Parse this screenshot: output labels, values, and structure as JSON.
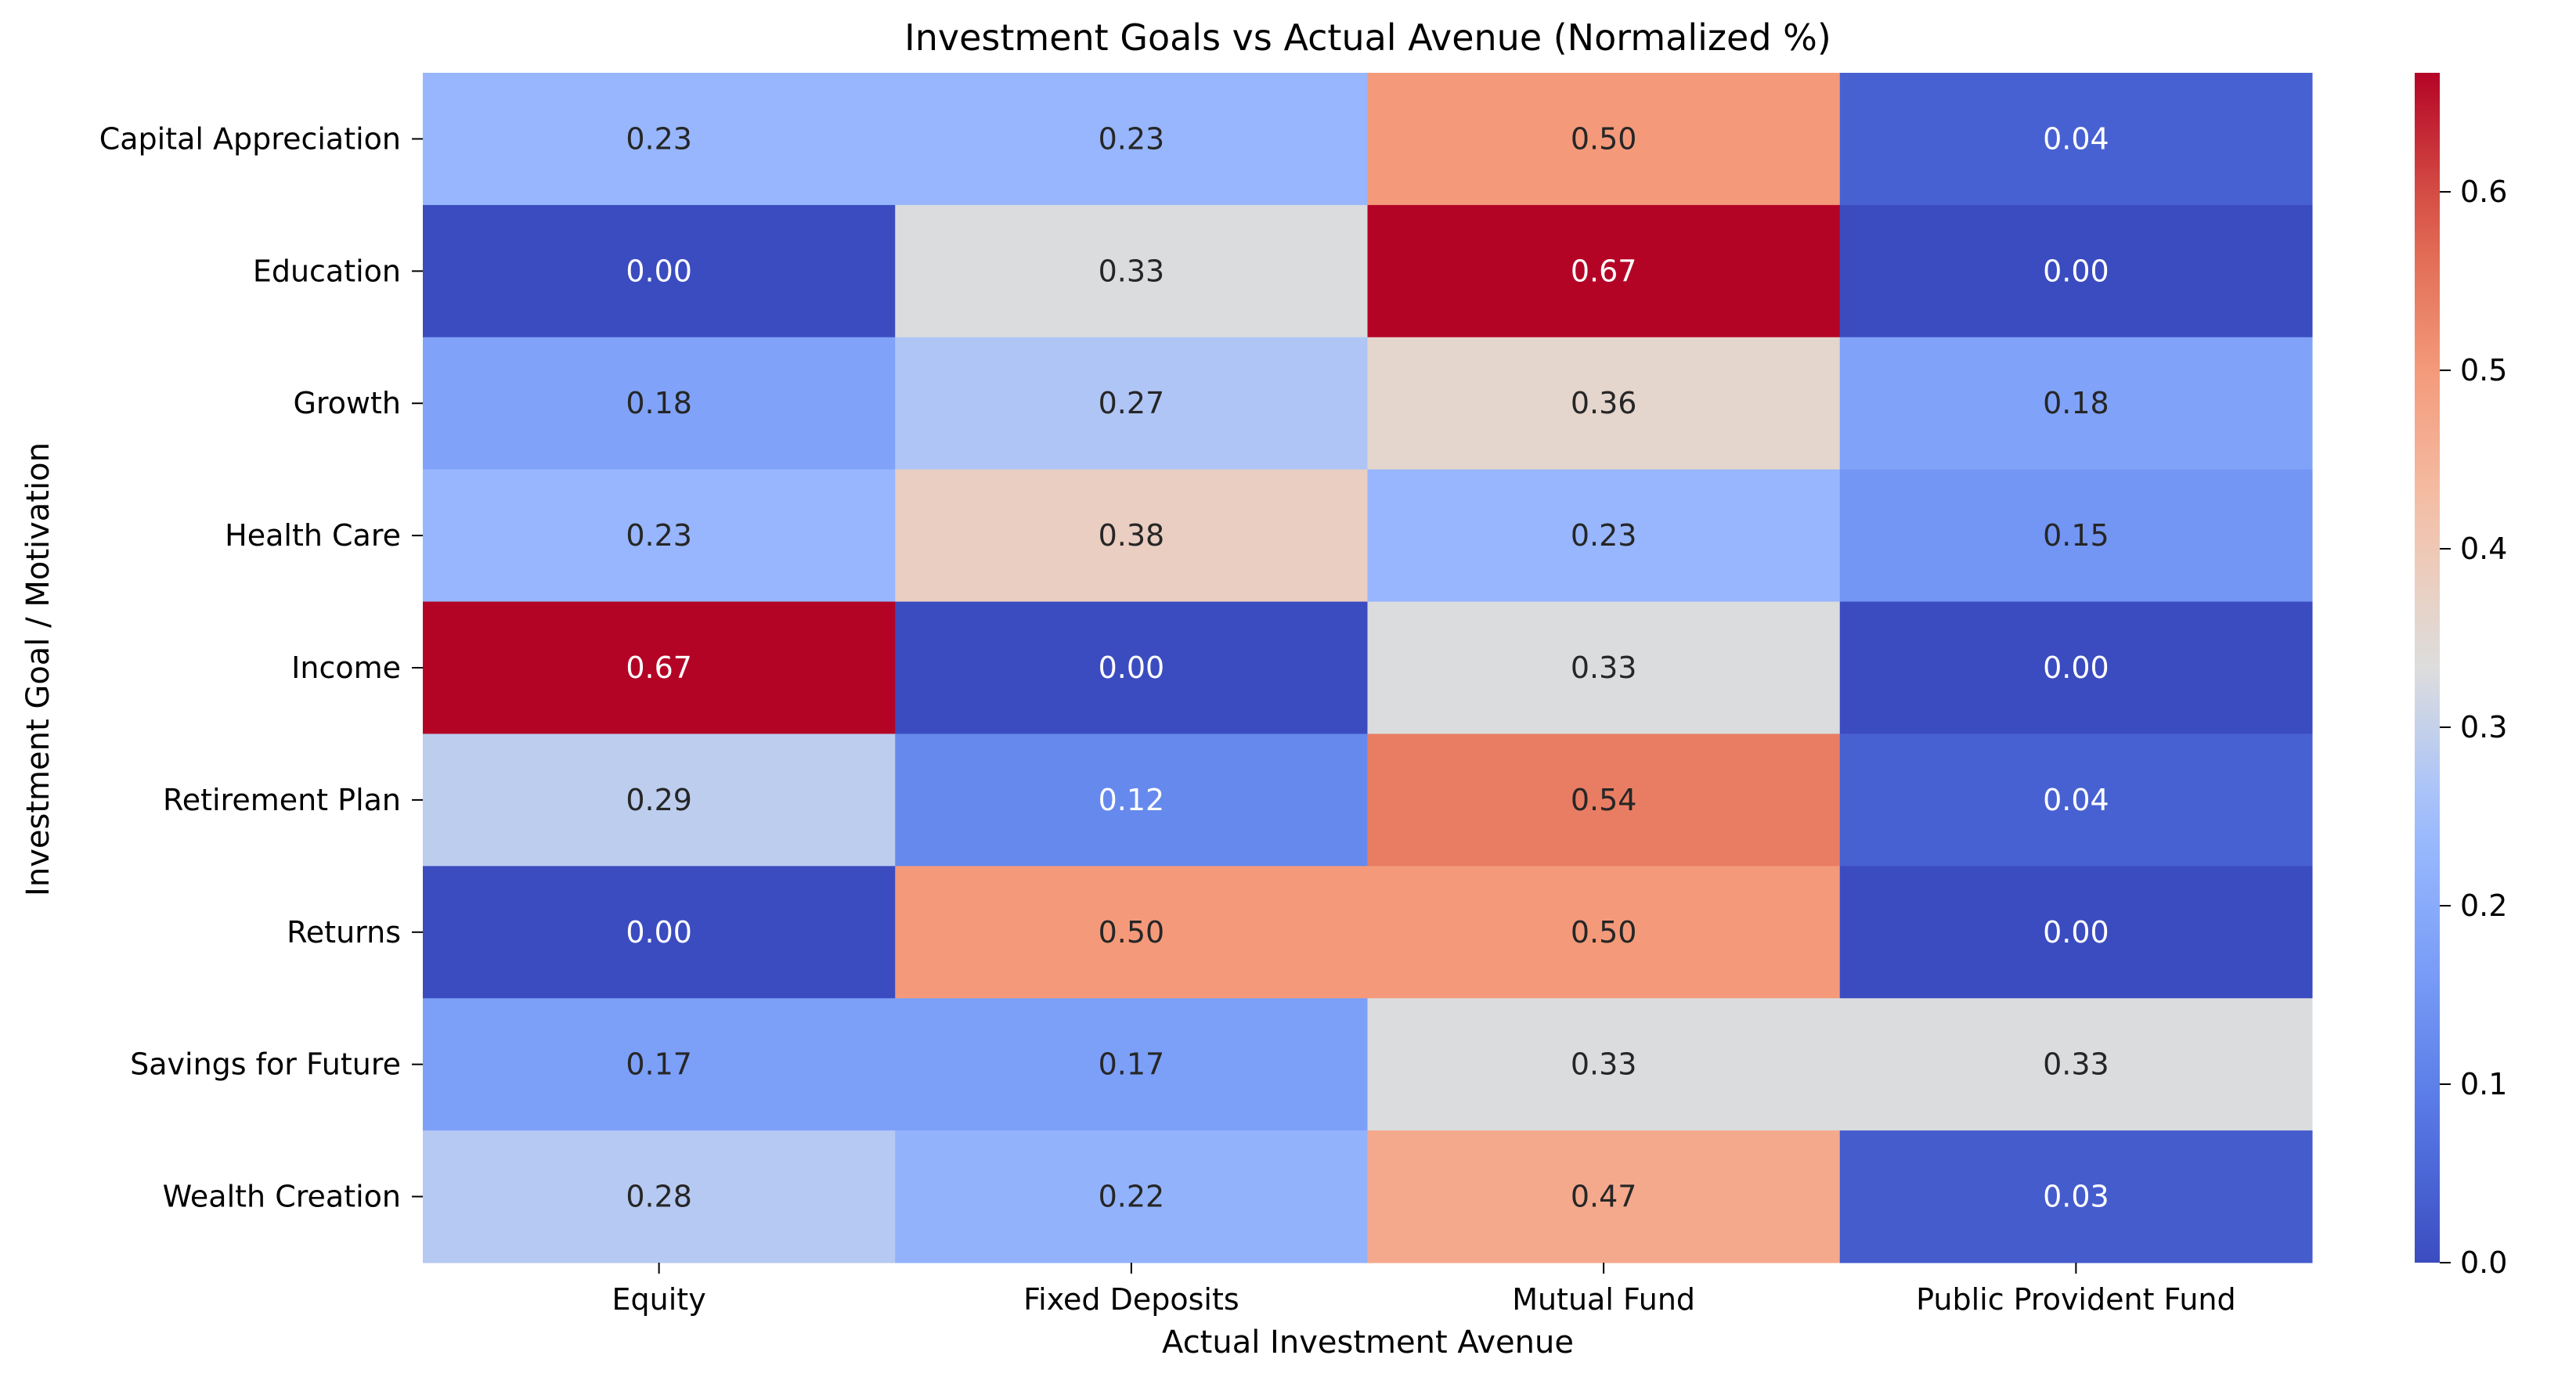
{
  "chart_data": {
    "type": "heatmap",
    "title": "Investment Goals vs Actual Avenue (Normalized %)",
    "xlabel": "Actual Investment Avenue",
    "ylabel": "Investment Goal / Motivation",
    "columns": [
      "Equity",
      "Fixed Deposits",
      "Mutual Fund",
      "Public Provident Fund"
    ],
    "rows": [
      "Capital Appreciation",
      "Education",
      "Growth",
      "Health Care",
      "Income",
      "Retirement Plan",
      "Returns",
      "Savings for Future",
      "Wealth Creation"
    ],
    "values": [
      [
        0.23,
        0.23,
        0.5,
        0.04
      ],
      [
        0.0,
        0.33,
        0.67,
        0.0
      ],
      [
        0.18,
        0.27,
        0.36,
        0.18
      ],
      [
        0.23,
        0.38,
        0.23,
        0.15
      ],
      [
        0.67,
        0.0,
        0.33,
        0.0
      ],
      [
        0.29,
        0.12,
        0.54,
        0.04
      ],
      [
        0.0,
        0.5,
        0.5,
        0.0
      ],
      [
        0.17,
        0.17,
        0.33,
        0.33
      ],
      [
        0.28,
        0.22,
        0.47,
        0.03
      ]
    ],
    "value_labels": [
      [
        "0.23",
        "0.23",
        "0.50",
        "0.04"
      ],
      [
        "0.00",
        "0.33",
        "0.67",
        "0.00"
      ],
      [
        "0.18",
        "0.27",
        "0.36",
        "0.18"
      ],
      [
        "0.23",
        "0.38",
        "0.23",
        "0.15"
      ],
      [
        "0.67",
        "0.00",
        "0.33",
        "0.00"
      ],
      [
        "0.29",
        "0.12",
        "0.54",
        "0.04"
      ],
      [
        "0.00",
        "0.50",
        "0.50",
        "0.00"
      ],
      [
        "0.17",
        "0.17",
        "0.33",
        "0.33"
      ],
      [
        "0.28",
        "0.22",
        "0.47",
        "0.03"
      ]
    ],
    "colorbar": {
      "min": 0.0,
      "max": 0.6667,
      "ticks": [
        0.0,
        0.1,
        0.2,
        0.3,
        0.4,
        0.5,
        0.6
      ],
      "tick_labels": [
        "0.0",
        "0.1",
        "0.2",
        "0.3",
        "0.4",
        "0.5",
        "0.6"
      ],
      "colormap": "coolwarm"
    },
    "grid": false,
    "legend": "colorbar-right"
  }
}
